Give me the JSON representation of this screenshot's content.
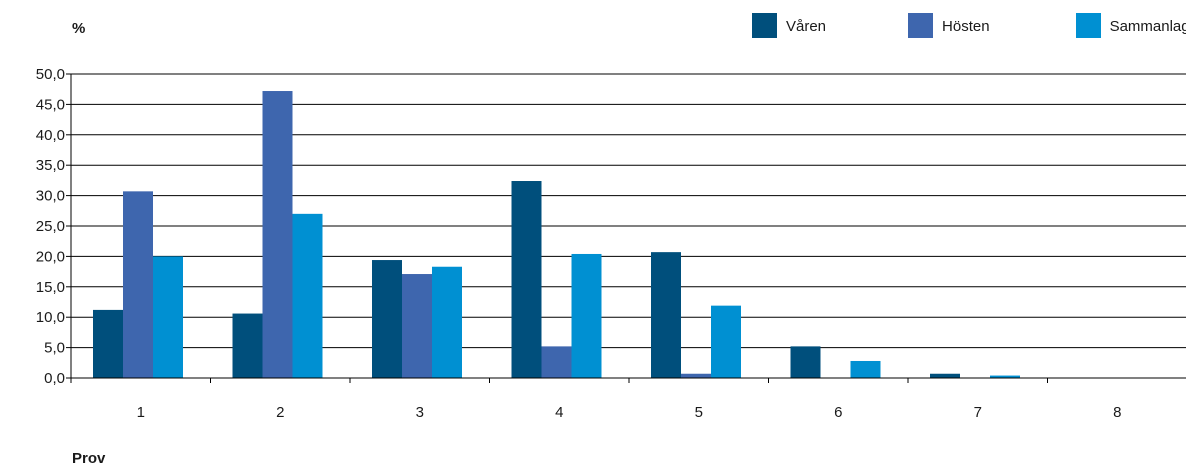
{
  "chart_data": {
    "type": "bar",
    "ylabel": "%",
    "xlabel": "Prov",
    "categories": [
      "1",
      "2",
      "3",
      "4",
      "5",
      "6",
      "7",
      "8"
    ],
    "series": [
      {
        "name": "Våren",
        "color": "#004f7c",
        "values": [
          11.2,
          10.6,
          19.4,
          32.4,
          20.7,
          5.2,
          0.7,
          0.0
        ]
      },
      {
        "name": "Hösten",
        "color": "#3e66ae",
        "values": [
          30.7,
          47.2,
          17.1,
          5.2,
          0.7,
          0.0,
          0.0,
          0.0
        ]
      },
      {
        "name": "Sammanlagt",
        "color": "#0090d2",
        "values": [
          20.0,
          27.0,
          18.3,
          20.4,
          11.9,
          2.8,
          0.4,
          0.0
        ]
      }
    ],
    "ylim": [
      0,
      50
    ],
    "yticks": [
      "0,0",
      "5,0",
      "10,0",
      "15,0",
      "20,0",
      "25,0",
      "30,0",
      "35,0",
      "40,0",
      "45,0",
      "50,0"
    ],
    "grid": true,
    "legend_position": "top-right"
  }
}
